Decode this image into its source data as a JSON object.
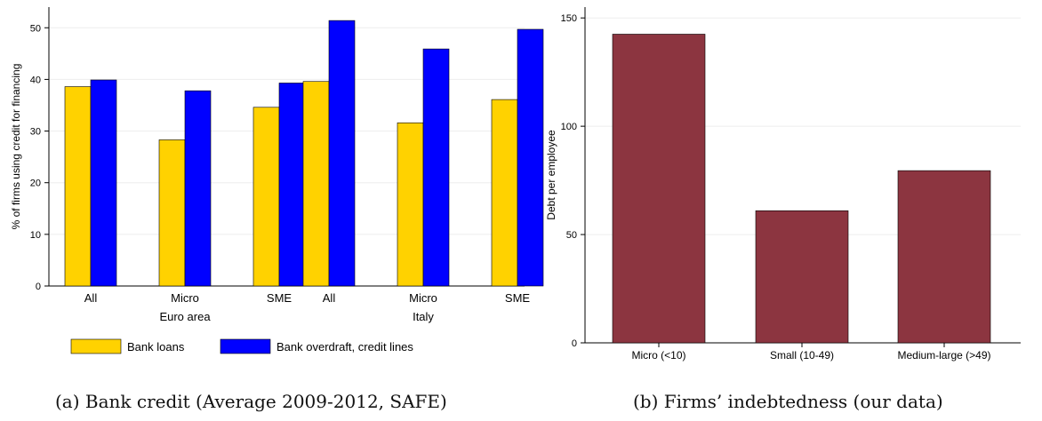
{
  "chart_data": [
    {
      "type": "bar",
      "caption": "(a)  Bank credit (Average 2009-2012, SAFE)",
      "ylabel": "% of firms using credit for financing",
      "ylim": [
        0,
        54
      ],
      "yticks": [
        0,
        10,
        20,
        30,
        40,
        50
      ],
      "grid": true,
      "legend_placement": "bottom",
      "groups": [
        {
          "name": "Euro area",
          "categories": [
            "All",
            "Micro",
            "SME"
          ]
        },
        {
          "name": "Italy",
          "categories": [
            "All",
            "Micro",
            "SME"
          ]
        }
      ],
      "series": [
        {
          "name": "Bank loans",
          "color": "#FFD200",
          "values": [
            38.6,
            28.3,
            34.6,
            39.6,
            31.6,
            36.1
          ]
        },
        {
          "name": "Bank overdraft, credit lines",
          "color": "#0000FF",
          "values": [
            39.9,
            37.8,
            39.3,
            51.4,
            45.9,
            49.7
          ]
        }
      ]
    },
    {
      "type": "bar",
      "caption": "(b)  Firms’ indebtedness (our data)",
      "ylabel": "Debt per employee",
      "ylim": [
        0,
        155
      ],
      "yticks": [
        0,
        50,
        100,
        150
      ],
      "grid": true,
      "categories": [
        "Micro (<10)",
        "Small (10-49)",
        "Medium-large (>49)"
      ],
      "series": [
        {
          "color": "#8C3540",
          "values": [
            142.5,
            61,
            79.5
          ]
        }
      ]
    }
  ]
}
